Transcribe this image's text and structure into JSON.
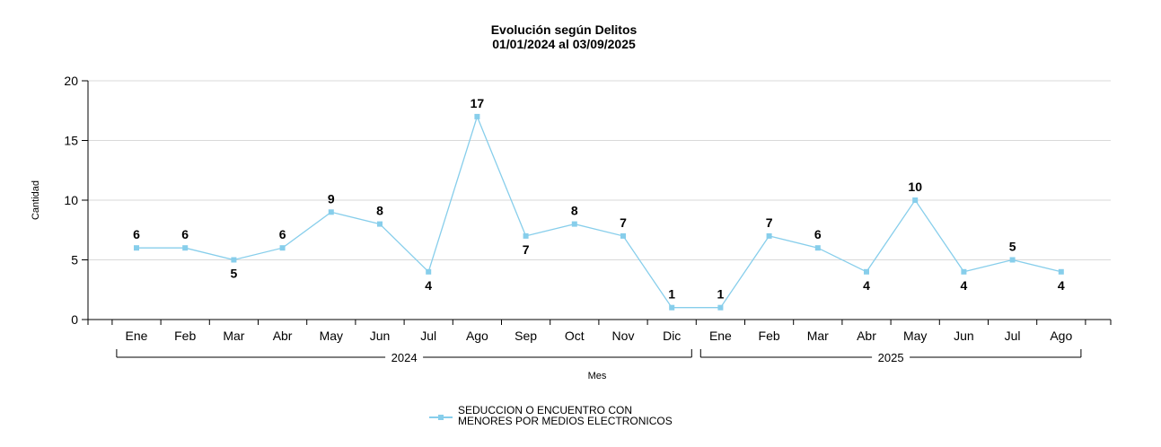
{
  "chart_data": {
    "type": "line",
    "title": "Evolución según Delitos",
    "subtitle": "01/01/2024 al 03/09/2025",
    "xlabel": "Mes",
    "ylabel": "Cantidad",
    "ylim": [
      0,
      20
    ],
    "yticks": [
      "0",
      "5",
      "10",
      "15",
      "20"
    ],
    "grid": true,
    "categories": [
      "Ene",
      "Feb",
      "Mar",
      "Abr",
      "May",
      "Jun",
      "Jul",
      "Ago",
      "Sep",
      "Oct",
      "Nov",
      "Dic",
      "Ene",
      "Feb",
      "Mar",
      "Abr",
      "May",
      "Jun",
      "Jul",
      "Ago"
    ],
    "groups": [
      {
        "label": "2024",
        "count": 12
      },
      {
        "label": "2025",
        "count": 8
      }
    ],
    "series": [
      {
        "name": "SEDUCCION O ENCUENTRO CON MENORES POR MEDIOS ELECTRONICOS",
        "legend_lines": [
          "SEDUCCION O ENCUENTRO CON",
          "MENORES POR MEDIOS ELECTRONICOS"
        ],
        "color": "#87ceeb",
        "values": [
          6,
          6,
          5,
          6,
          9,
          8,
          4,
          17,
          7,
          8,
          7,
          1,
          1,
          7,
          6,
          4,
          10,
          4,
          5,
          4
        ],
        "label_position": [
          "above",
          "above",
          "below",
          "above",
          "above",
          "above",
          "below",
          "above",
          "below",
          "above",
          "above",
          "above",
          "above",
          "above",
          "above",
          "below",
          "above",
          "below",
          "above",
          "below"
        ]
      }
    ],
    "legend_position": "bottom-center"
  }
}
